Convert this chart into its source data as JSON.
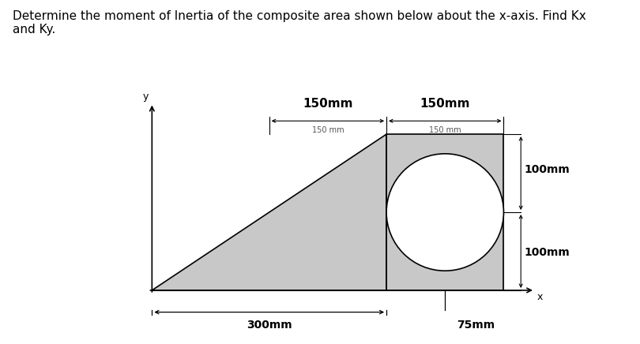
{
  "title": "Determine the moment of Inertia of the composite area shown below about the x-axis. Find Kx\nand Ky.",
  "title_fontsize": 11,
  "bg_color": "#ffffff",
  "shape_fill": "#c8c8c8",
  "shape_edge": "#000000",
  "label_150mm_1": "150mm",
  "label_150mm_2": "150mm",
  "label_150mm_small_1": "150 mm",
  "label_150mm_small_2": "150 mm",
  "label_300mm": "300mm",
  "label_75mm": "75mm",
  "label_100mm_1": "100mm",
  "label_100mm_2": "100mm",
  "yaxis_label": "y",
  "xaxis_label": "x",
  "fig_width": 8.1,
  "fig_height": 4.36,
  "dpi": 100
}
